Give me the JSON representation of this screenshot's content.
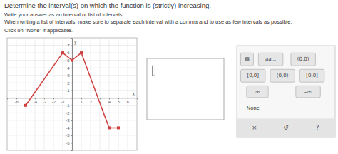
{
  "chart_data": {
    "type": "line",
    "title": "Determine the interval(s) on which the function is (strictly) increasing.",
    "annotations": [
      "Write your answer as an interval or list of intervals.",
      "When writing a list of intervals, make sure to separate each interval with a comma and to use as few intervals as possible.",
      "Click on \"None\" if applicable."
    ],
    "xlabel": "x",
    "ylabel": "y",
    "x": [
      -5,
      -1,
      0,
      1,
      4,
      5
    ],
    "values": [
      -1,
      6,
      5,
      6,
      -4,
      -4
    ],
    "color": "#d04040",
    "marker": "square",
    "xlim": [
      -7,
      7
    ],
    "ylim": [
      -7,
      8
    ],
    "xticks": [
      -6,
      {
        "value": -5,
        "label": null
      },
      -4,
      -3,
      -2,
      -1,
      {
        "value": 0,
        "label": null
      },
      1,
      2,
      3,
      4,
      5,
      6
    ],
    "yticks": [
      -6,
      -5,
      -4,
      -3,
      -2,
      -1,
      {
        "value": 0,
        "label": null
      },
      1,
      2,
      3,
      4,
      5,
      6,
      7
    ],
    "grid": true
  },
  "panel": {
    "buttons": [
      "▤",
      "aa...",
      "(0,0)",
      "[0,0]",
      "(0,0)",
      "[0,0]",
      "∞",
      "-∞"
    ],
    "none_label": "None",
    "footer_buttons": [
      "×",
      "↺",
      "?"
    ]
  }
}
